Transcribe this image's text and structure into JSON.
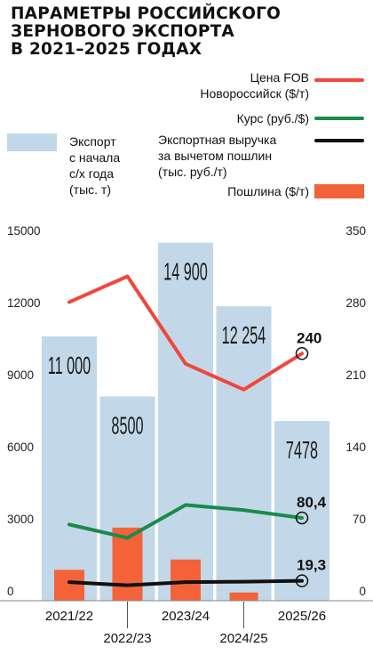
{
  "title_lines": [
    "ПАРАМЕТРЫ РОССИЙСКОГО",
    "ЗЕРНОВОГО ЭКСПОРТА",
    "В 2021–2025 ГОДАХ"
  ],
  "legend": {
    "fob": [
      "Цена FOB",
      "Новороссийск ($/т)"
    ],
    "rate": [
      "Курс (руб./$)"
    ],
    "revenue": [
      "Экспортная выручка",
      "за вычетом пошлин",
      "(тыс. руб./т)"
    ],
    "duty": [
      "Пошлина ($/т)"
    ],
    "export": [
      "Экспорт",
      "с начала",
      "с/х года",
      "(тыс. т)"
    ]
  },
  "colors": {
    "export_bar": "#c2d8e8",
    "fob_line": "#f0463c",
    "rate_line": "#1a8a4a",
    "revenue_line": "#111111",
    "duty_bar": "#f4623a"
  },
  "chart_data": {
    "type": "bar",
    "categories": [
      "2021/22",
      "2022/23",
      "2023/24",
      "2024/25",
      "2025/26"
    ],
    "left_axis": {
      "ylim": [
        0,
        15000
      ],
      "ticks": [
        "0",
        "3000",
        "6000",
        "9000",
        "12000",
        "15000"
      ]
    },
    "right_axis": {
      "ylim": [
        0,
        350
      ],
      "ticks": [
        "0",
        "70",
        "140",
        "210",
        "280",
        "350"
      ]
    },
    "series": [
      {
        "name": "Экспорт с начала с/х года (тыс. т)",
        "kind": "bar",
        "axis": "left",
        "values": [
          11000,
          8500,
          14900,
          12254,
          7478
        ],
        "labels": [
          "11 000",
          "8500",
          "14 900",
          "12 254",
          "7478"
        ]
      },
      {
        "name": "Пошлина ($/т)",
        "kind": "bar",
        "axis": "right",
        "values": [
          30,
          71,
          40,
          8,
          null
        ]
      },
      {
        "name": "Цена FOB Новороссийск ($/т)",
        "kind": "line",
        "axis": "right",
        "values": [
          290,
          315,
          230,
          205,
          240
        ]
      },
      {
        "name": "Курс (руб./$)",
        "kind": "line",
        "axis": "right",
        "values": [
          74,
          61,
          93,
          88,
          80.4
        ]
      },
      {
        "name": "Экспортная выручка за вычетом пошлин (тыс. руб./т)",
        "kind": "line",
        "axis": "right",
        "values": [
          18,
          15,
          18,
          18.5,
          19.3
        ]
      }
    ],
    "end_labels": [
      "240",
      "80,4",
      "19,3"
    ]
  }
}
